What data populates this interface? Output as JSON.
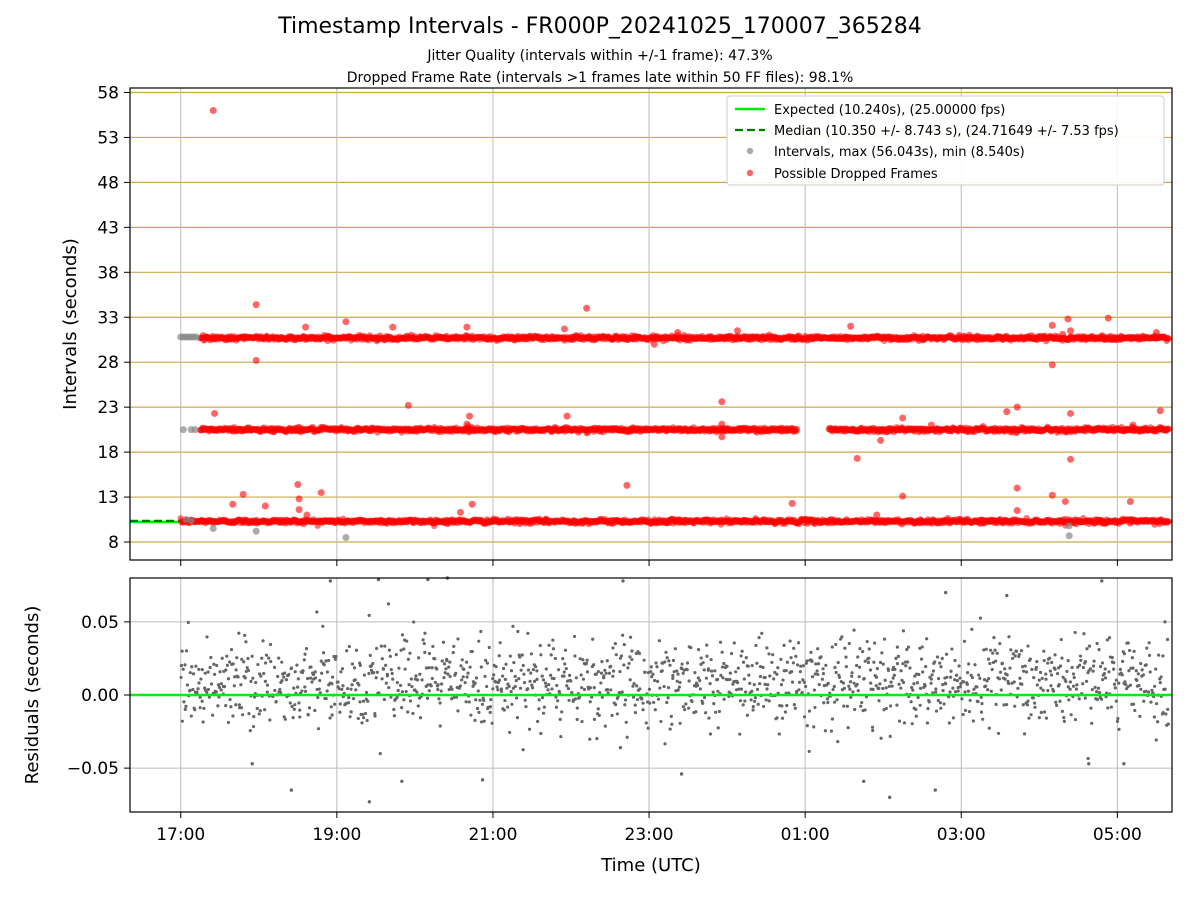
{
  "title": "Timestamp Intervals - FR000P_20241025_170007_365284",
  "subtitle_1": "Jitter Quality (intervals within +/-1 frame): 47.3%",
  "subtitle_2": "Dropped Frame Rate (intervals >1 frames late within 50 FF files): 98.1%",
  "colors": {
    "expected": "#00ee00",
    "median": "#007a00",
    "intervals": "#888888",
    "dropped": "#ff0000",
    "hgrid": "#c9a94c",
    "vgrid": "#bbbbbb",
    "residual": "#666666"
  },
  "chart_data": [
    {
      "type": "scatter",
      "ylabel": "Intervals (seconds)",
      "xlabel": "",
      "ylim": [
        6,
        58.5
      ],
      "xlim_hours": [
        16.35,
        29.7
      ],
      "x_ticks": [
        "17:00",
        "19:00",
        "21:00",
        "23:00",
        "01:00",
        "03:00",
        "05:00"
      ],
      "y_ticks": [
        8,
        13,
        18,
        23,
        28,
        33,
        38,
        43,
        48,
        53,
        58
      ],
      "grid": "on",
      "legend_position": "top-right",
      "legend": [
        {
          "label": "Expected (10.240s), (25.00000 fps)",
          "style": "line-solid",
          "color": "#00ee00"
        },
        {
          "label": "Median (10.350 +/- 8.743 s), (24.71649 +/- 7.53 fps)",
          "style": "line-dashed",
          "color": "#007a00"
        },
        {
          "label": "Intervals, max (56.043s), min (8.540s)",
          "style": "dot",
          "color": "#888888"
        },
        {
          "label": "Possible Dropped Frames",
          "style": "dot",
          "color": "#ff0000"
        }
      ],
      "expected_value": 10.24,
      "median_value": 10.35,
      "median_xrange": [
        "16:20",
        "17:00"
      ],
      "bands": [
        {
          "name": "Intervals ~10.3 s",
          "y": 10.3,
          "x_start": "17:00",
          "x_end": "05:40"
        },
        {
          "name": "Intervals ~20.5 s",
          "y": 20.5,
          "x_start": "17:15",
          "x_end": "05:40"
        },
        {
          "name": "Intervals ~30.7 s",
          "y": 30.7,
          "x_start": "17:15",
          "x_end": "05:40"
        }
      ],
      "gray_points": [
        {
          "x": "17:00",
          "y": 30.8
        },
        {
          "x": "17:02",
          "y": 30.8
        },
        {
          "x": "17:04",
          "y": 30.8
        },
        {
          "x": "17:06",
          "y": 30.8
        },
        {
          "x": "17:08",
          "y": 30.8
        },
        {
          "x": "17:10",
          "y": 30.8
        },
        {
          "x": "17:12",
          "y": 30.8
        },
        {
          "x": "17:02",
          "y": 20.5
        },
        {
          "x": "17:08",
          "y": 20.5
        },
        {
          "x": "17:11",
          "y": 20.5
        },
        {
          "x": "17:04",
          "y": 10.5
        },
        {
          "x": "17:08",
          "y": 10.4
        },
        {
          "x": "17:25",
          "y": 9.5
        },
        {
          "x": "17:58",
          "y": 9.2
        },
        {
          "x": "19:07",
          "y": 8.5
        },
        {
          "x": "04:23",
          "y": 8.7
        },
        {
          "x": "04:23",
          "y": 9.8
        }
      ],
      "dropped_points": [
        {
          "x": "17:25",
          "y": 56.0
        },
        {
          "x": "17:58",
          "y": 34.4
        },
        {
          "x": "17:58",
          "y": 28.2
        },
        {
          "x": "17:26",
          "y": 22.3
        },
        {
          "x": "17:40",
          "y": 12.2
        },
        {
          "x": "17:48",
          "y": 13.3
        },
        {
          "x": "18:05",
          "y": 12.0
        },
        {
          "x": "18:30",
          "y": 14.4
        },
        {
          "x": "18:31",
          "y": 12.8
        },
        {
          "x": "18:31",
          "y": 11.6
        },
        {
          "x": "18:37",
          "y": 11.0
        },
        {
          "x": "18:48",
          "y": 13.5
        },
        {
          "x": "18:36",
          "y": 31.9
        },
        {
          "x": "19:07",
          "y": 32.5
        },
        {
          "x": "19:43",
          "y": 31.9
        },
        {
          "x": "19:55",
          "y": 23.2
        },
        {
          "x": "20:40",
          "y": 31.9
        },
        {
          "x": "20:42",
          "y": 22.0
        },
        {
          "x": "20:40",
          "y": 21.1
        },
        {
          "x": "20:35",
          "y": 11.3
        },
        {
          "x": "20:44",
          "y": 12.2
        },
        {
          "x": "21:55",
          "y": 31.7
        },
        {
          "x": "21:57",
          "y": 22.0
        },
        {
          "x": "22:12",
          "y": 34.0
        },
        {
          "x": "22:43",
          "y": 14.3
        },
        {
          "x": "23:04",
          "y": 30.0
        },
        {
          "x": "23:22",
          "y": 31.3
        },
        {
          "x": "23:56",
          "y": 23.6
        },
        {
          "x": "23:56",
          "y": 21.1
        },
        {
          "x": "23:56",
          "y": 19.7
        },
        {
          "x": "00:08",
          "y": 31.5
        },
        {
          "x": "00:50",
          "y": 12.3
        },
        {
          "x": "01:35",
          "y": 32.0
        },
        {
          "x": "01:40",
          "y": 17.3
        },
        {
          "x": "01:58",
          "y": 19.3
        },
        {
          "x": "01:55",
          "y": 11.0
        },
        {
          "x": "02:15",
          "y": 13.1
        },
        {
          "x": "02:15",
          "y": 21.8
        },
        {
          "x": "02:37",
          "y": 21.0
        },
        {
          "x": "03:35",
          "y": 22.5
        },
        {
          "x": "03:43",
          "y": 23.0
        },
        {
          "x": "03:43",
          "y": 14.0
        },
        {
          "x": "03:43",
          "y": 11.5
        },
        {
          "x": "04:10",
          "y": 32.1
        },
        {
          "x": "04:10",
          "y": 27.7
        },
        {
          "x": "04:10",
          "y": 13.2
        },
        {
          "x": "04:18",
          "y": 31.1
        },
        {
          "x": "04:22",
          "y": 32.8
        },
        {
          "x": "04:24",
          "y": 31.5
        },
        {
          "x": "04:24",
          "y": 22.3
        },
        {
          "x": "04:24",
          "y": 17.2
        },
        {
          "x": "04:20",
          "y": 12.5
        },
        {
          "x": "04:53",
          "y": 32.9
        },
        {
          "x": "05:10",
          "y": 12.5
        },
        {
          "x": "05:12",
          "y": 21.0
        },
        {
          "x": "05:30",
          "y": 31.3
        },
        {
          "x": "05:33",
          "y": 22.6
        }
      ]
    },
    {
      "type": "scatter",
      "ylabel": "Residuals (seconds)",
      "xlabel": "Time (UTC)",
      "ylim": [
        -0.08,
        0.08
      ],
      "y_ticks": [
        0.05,
        0.0,
        -0.05
      ],
      "y_tick_labels": [
        "0.05",
        "0.00",
        "−0.05"
      ],
      "x_ticks": [
        "17:00",
        "19:00",
        "21:00",
        "23:00",
        "01:00",
        "03:00",
        "05:00"
      ],
      "zero_line": 0.0,
      "grid": "on",
      "residual_sd": 0.02,
      "residual_outliers": [
        {
          "x": "17:55",
          "y": -0.047
        },
        {
          "x": "18:25",
          "y": -0.065
        },
        {
          "x": "19:25",
          "y": -0.073
        },
        {
          "x": "19:50",
          "y": -0.059
        },
        {
          "x": "20:52",
          "y": -0.058
        },
        {
          "x": "22:38",
          "y": -0.036
        },
        {
          "x": "23:25",
          "y": -0.054
        },
        {
          "x": "01:45",
          "y": -0.059
        },
        {
          "x": "02:05",
          "y": -0.07
        },
        {
          "x": "02:40",
          "y": -0.065
        },
        {
          "x": "04:38",
          "y": -0.047
        },
        {
          "x": "05:05",
          "y": -0.047
        },
        {
          "x": "18:55",
          "y": 0.078
        },
        {
          "x": "19:32",
          "y": 0.079
        },
        {
          "x": "20:10",
          "y": 0.079
        },
        {
          "x": "20:25",
          "y": 0.08
        },
        {
          "x": "22:40",
          "y": 0.078
        },
        {
          "x": "04:48",
          "y": 0.078
        },
        {
          "x": "03:35",
          "y": 0.068
        },
        {
          "x": "02:48",
          "y": 0.07
        }
      ]
    }
  ]
}
